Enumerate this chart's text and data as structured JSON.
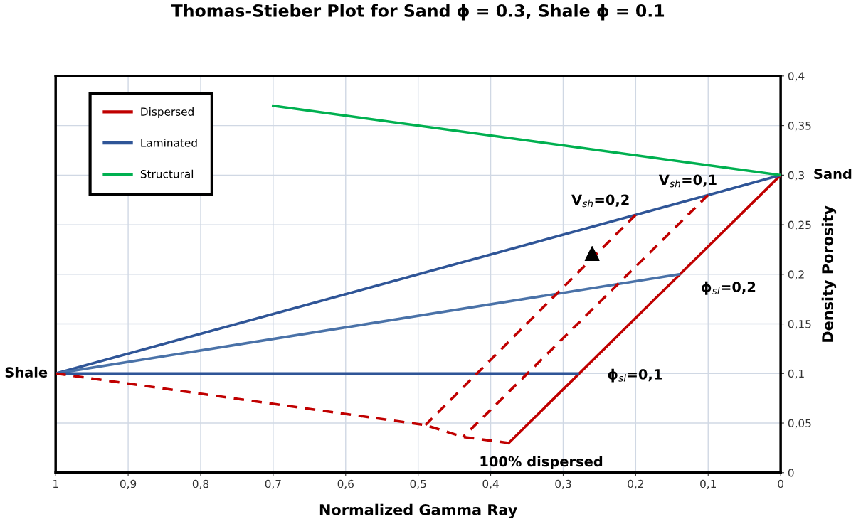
{
  "chart_data": {
    "type": "line",
    "title": "Thomas-Stieber Plot for Sand ϕ = 0.3, Shale ϕ = 0.1",
    "xlabel": "Normalized Gamma Ray",
    "ylabel": "Density Porosity",
    "series": [
      {
        "name": "Dispersed",
        "color": "#c00000",
        "x": [
          0,
          0.375
        ],
        "values": [
          0.3,
          0.03
        ]
      },
      {
        "name": "Laminated",
        "color": "#2f5597",
        "x": [
          1,
          0
        ],
        "values": [
          0.1,
          0.3
        ]
      },
      {
        "name": "Structural",
        "color": "#00b050",
        "x": [
          0.7,
          0
        ],
        "values": [
          0.37,
          0.3
        ]
      },
      {
        "color": "#4a72a8",
        "x": [
          1,
          0.14
        ],
        "values": [
          0.1,
          0.2
        ]
      },
      {
        "color": "#2f5597",
        "x": [
          1,
          0.28
        ],
        "values": [
          0.1,
          0.1
        ]
      },
      {
        "color": "#c00000",
        "line_style": "dashed",
        "x": [
          1,
          0.49,
          0.438,
          0.375
        ],
        "values": [
          0.1,
          0.048,
          0.036,
          0.03
        ]
      },
      {
        "color": "#c00000",
        "line_style": "dashed",
        "x": [
          0.2,
          0.49
        ],
        "values": [
          0.26,
          0.048
        ]
      },
      {
        "color": "#c00000",
        "line_style": "dashed",
        "x": [
          0.1,
          0.438
        ],
        "values": [
          0.28,
          0.036
        ]
      },
      {
        "type": "scatter",
        "marker": "triangle",
        "color": "#000000",
        "x": [
          0.26
        ],
        "values": [
          0.221
        ]
      }
    ],
    "annotations": [
      {
        "text": "Sand",
        "x": 0,
        "y": 0.3
      },
      {
        "text": "Shale",
        "x": 1,
        "y": 0.1
      },
      {
        "text": "V$_{sh}$=0,1",
        "x": 0.1,
        "y": 0.28
      },
      {
        "text": "V$_{sh}$=0,2",
        "x": 0.2,
        "y": 0.26
      },
      {
        "text": "ϕ$_{sl}$=0,2",
        "x": 0.14,
        "y": 0.2
      },
      {
        "text": "ϕ$_{sl}$=0,1",
        "x": 0.28,
        "y": 0.1
      },
      {
        "text": "100% dispersed",
        "x": 0.375,
        "y": 0.03
      }
    ],
    "xlim": [
      1,
      0
    ],
    "ylim": [
      0,
      0.4
    ],
    "xticks": [
      1,
      {
        "value": 0.9,
        "label": "0,9"
      },
      {
        "value": 0.8,
        "label": "0,8"
      },
      {
        "value": 0.7,
        "label": "0,7"
      },
      {
        "value": 0.6,
        "label": "0,6"
      },
      {
        "value": 0.5,
        "label": "0,5"
      },
      {
        "value": 0.4,
        "label": "0,4"
      },
      {
        "value": 0.3,
        "label": "0,3"
      },
      {
        "value": 0.2,
        "label": "0,2"
      },
      {
        "value": 0.1,
        "label": "0,1"
      },
      0
    ],
    "yticks": [
      0,
      {
        "value": 0.05,
        "label": "0,05"
      },
      {
        "value": 0.1,
        "label": "0,1"
      },
      {
        "value": 0.15,
        "label": "0,15"
      },
      {
        "value": 0.2,
        "label": "0,2"
      },
      {
        "value": 0.25,
        "label": "0,25"
      },
      {
        "value": 0.3,
        "label": "0,3"
      },
      {
        "value": 0.35,
        "label": "0,35"
      },
      {
        "value": 0.4,
        "label": "0,4"
      }
    ],
    "grid": true,
    "legend": "top left",
    "marker": "none",
    "line_style": "solid"
  }
}
